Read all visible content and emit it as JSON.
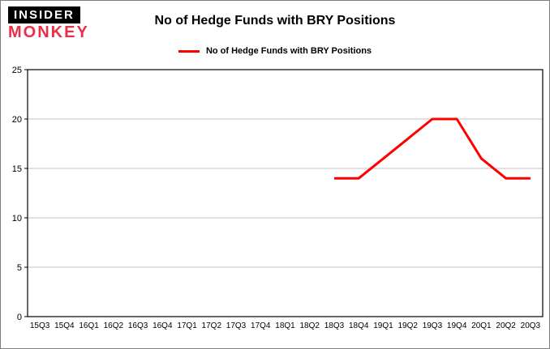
{
  "logo": {
    "top": "INSIDER",
    "bottom": "MONKEY",
    "monkey_color": "#e8304a"
  },
  "title": "No of Hedge Funds with BRY Positions",
  "legend": {
    "label": "No of Hedge Funds with BRY Positions",
    "color": "#ff0000"
  },
  "chart_data": {
    "type": "line",
    "title": "No of Hedge Funds with BRY Positions",
    "categories": [
      "15Q3",
      "15Q4",
      "16Q1",
      "16Q2",
      "16Q3",
      "16Q4",
      "17Q1",
      "17Q2",
      "17Q3",
      "17Q4",
      "18Q1",
      "18Q2",
      "18Q3",
      "18Q4",
      "19Q1",
      "19Q2",
      "19Q3",
      "19Q4",
      "20Q1",
      "20Q2",
      "20Q3"
    ],
    "series": [
      {
        "name": "No of Hedge Funds with BRY Positions",
        "color": "#ff0000",
        "values": [
          null,
          null,
          null,
          null,
          null,
          null,
          null,
          null,
          null,
          null,
          null,
          null,
          14,
          14,
          16,
          18,
          20,
          20,
          16,
          14,
          14
        ]
      }
    ],
    "xlabel": "",
    "ylabel": "",
    "ylim": [
      0,
      25
    ],
    "yticks": [
      0,
      5,
      10,
      15,
      20,
      25
    ],
    "grid": true,
    "legend_position": "top",
    "grid_color": "#c3c3c3",
    "axis_color": "#000000",
    "background_color": "#ffffff"
  }
}
